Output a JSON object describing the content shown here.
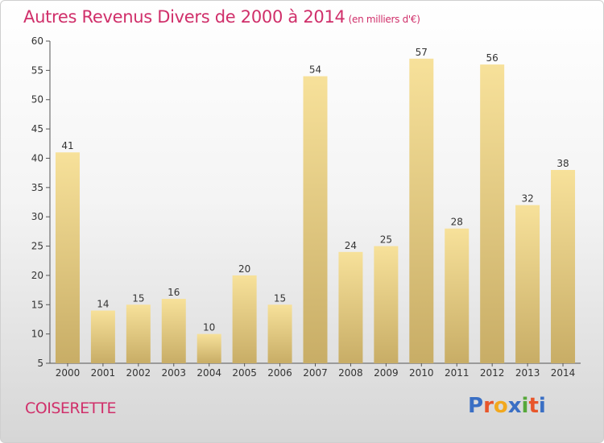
{
  "header": {
    "title": "Autres Revenus Divers de 2000 à 2014",
    "unit": "(en milliers d'€)"
  },
  "footer": {
    "place": "COISERETTE",
    "logo": "Proxiti",
    "logo_colors": [
      "#3a6fc4",
      "#e8562a",
      "#f2a81d",
      "#3a6fc4",
      "#56a83a",
      "#e8562a",
      "#3a6fc4"
    ]
  },
  "colors": {
    "accent": "#d02f6a",
    "bar_light": "#f7e19a",
    "bar_dark": "#c8ad66"
  },
  "chart_data": {
    "type": "bar",
    "title": "Autres Revenus Divers de 2000 à 2014",
    "categories": [
      "2000",
      "2001",
      "2002",
      "2003",
      "2004",
      "2005",
      "2006",
      "2007",
      "2008",
      "2009",
      "2010",
      "2011",
      "2012",
      "2013",
      "2014"
    ],
    "values": [
      41,
      14,
      15,
      16,
      10,
      20,
      15,
      54,
      24,
      25,
      57,
      28,
      56,
      32,
      38
    ],
    "xlabel": "",
    "ylabel": "",
    "ylim": [
      5,
      60
    ],
    "yticks": [
      5,
      10,
      15,
      20,
      25,
      30,
      35,
      40,
      45,
      50,
      55,
      60
    ],
    "grid": false,
    "legend": "none"
  }
}
